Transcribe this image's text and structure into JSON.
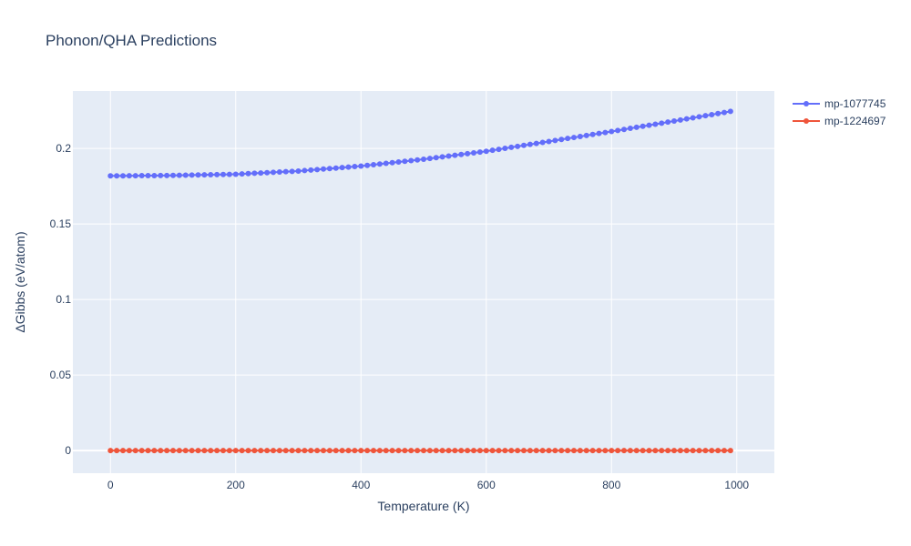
{
  "chart_data": {
    "type": "scatter",
    "title": "Phonon/QHA Predictions",
    "xlabel": "Temperature (K)",
    "ylabel": "ΔGibbs (eV/atom)",
    "xlim": [
      -60,
      1060
    ],
    "ylim": [
      -0.015,
      0.238
    ],
    "xticks": [
      0,
      200,
      400,
      600,
      800,
      1000
    ],
    "xtick_labels": [
      "0",
      "200",
      "400",
      "600",
      "800",
      "1000"
    ],
    "yticks": [
      0,
      0.05,
      0.1,
      0.15,
      0.2
    ],
    "ytick_labels": [
      "0",
      "0.05",
      "0.1",
      "0.15",
      "0.2"
    ],
    "grid": true,
    "legend_position": "top-right",
    "x_start": 0,
    "x_step": 10,
    "x_end": 990,
    "series": [
      {
        "name": "mp-1077745",
        "color": "#636efa",
        "mode": "lines+markers",
        "anchors": [
          [
            0,
            0.1818
          ],
          [
            100,
            0.1821
          ],
          [
            200,
            0.1829
          ],
          [
            300,
            0.185
          ],
          [
            400,
            0.1883
          ],
          [
            500,
            0.1928
          ],
          [
            600,
            0.1981
          ],
          [
            700,
            0.2046
          ],
          [
            800,
            0.2112
          ],
          [
            900,
            0.2181
          ],
          [
            990,
            0.2245
          ]
        ]
      },
      {
        "name": "mp-1224697",
        "color": "#ef553b",
        "mode": "lines+markers",
        "anchors": [
          [
            0,
            0
          ],
          [
            990,
            0
          ]
        ]
      }
    ]
  }
}
